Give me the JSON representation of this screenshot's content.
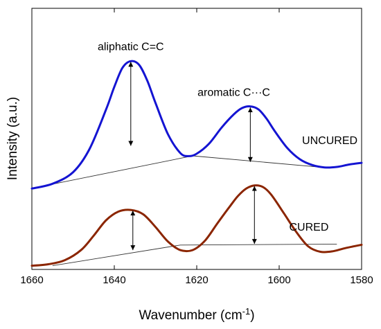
{
  "chart_data": {
    "type": "line",
    "title": "",
    "xlabel": "Wavenumber (cm",
    "xlabel_sup": "-1",
    "xlabel_suffix": ")",
    "ylabel": "Intensity (a.u.)",
    "xlim": [
      1660,
      1580
    ],
    "x_reversed": true,
    "ylim": [
      0,
      1
    ],
    "y_ticks_shown": false,
    "x_ticks": [
      1660,
      1640,
      1620,
      1600,
      1580
    ],
    "x_tick_labels": [
      "1660",
      "1640",
      "1620",
      "1600",
      "1580"
    ],
    "grid": false,
    "legend": "none",
    "series": [
      {
        "name": "UNCURED",
        "color": "#1414d2",
        "x": [
          1660,
          1655,
          1650,
          1646,
          1642,
          1640,
          1638,
          1636,
          1634,
          1632,
          1630,
          1627,
          1624,
          1622,
          1620,
          1617,
          1614,
          1611,
          1609,
          1607,
          1605,
          1603,
          1601,
          1598,
          1595,
          1592,
          1589,
          1586,
          1583,
          1580
        ],
        "y": [
          0.325,
          0.345,
          0.393,
          0.49,
          0.654,
          0.748,
          0.828,
          0.855,
          0.84,
          0.774,
          0.681,
          0.552,
          0.473,
          0.46,
          0.47,
          0.512,
          0.578,
          0.634,
          0.66,
          0.667,
          0.654,
          0.614,
          0.562,
          0.493,
          0.447,
          0.423,
          0.413,
          0.415,
          0.425,
          0.432
        ]
      },
      {
        "name": "CURED",
        "color": "#8b2500",
        "x": [
          1660,
          1656,
          1652,
          1648,
          1645,
          1642,
          1639,
          1636,
          1633,
          1630,
          1627,
          1624,
          1621,
          1618,
          1615,
          1612,
          1610,
          1608,
          1606,
          1604,
          1602,
          1599,
          1596,
          1593,
          1590,
          1587,
          1584,
          1580
        ],
        "y": [
          0.004,
          0.01,
          0.027,
          0.07,
          0.129,
          0.193,
          0.229,
          0.236,
          0.218,
          0.165,
          0.105,
          0.069,
          0.069,
          0.108,
          0.18,
          0.25,
          0.294,
          0.325,
          0.338,
          0.332,
          0.301,
          0.226,
          0.148,
          0.085,
          0.062,
          0.064,
          0.077,
          0.091
        ]
      }
    ],
    "baselines": [
      {
        "series": "UNCURED",
        "x": [
          1660,
          1621,
          1588
        ],
        "y": [
          0.326,
          0.461,
          0.411
        ]
      },
      {
        "series": "CURED",
        "x": [
          1655,
          1624,
          1586
        ],
        "y": [
          0.004,
          0.09,
          0.094
        ]
      }
    ],
    "peak_markers": [
      {
        "series": "UNCURED",
        "x": 1636,
        "y_top": 0.855,
        "y_bottom": 0.5
      },
      {
        "series": "UNCURED",
        "x": 1607,
        "y_top": 0.665,
        "y_bottom": 0.433
      },
      {
        "series": "CURED",
        "x": 1635.5,
        "y_top": 0.236,
        "y_bottom": 0.066
      },
      {
        "series": "CURED",
        "x": 1606,
        "y_top": 0.338,
        "y_bottom": 0.092
      }
    ],
    "annotations": [
      {
        "text": "aliphatic C=C",
        "x": 1636,
        "y": 0.9
      },
      {
        "text": "aromatic C···C",
        "x": 1611,
        "y": 0.71
      },
      {
        "text": "UNCURED",
        "x": 1581,
        "y": 0.51
      },
      {
        "text": "CURED",
        "x": 1588,
        "y": 0.15
      }
    ]
  }
}
